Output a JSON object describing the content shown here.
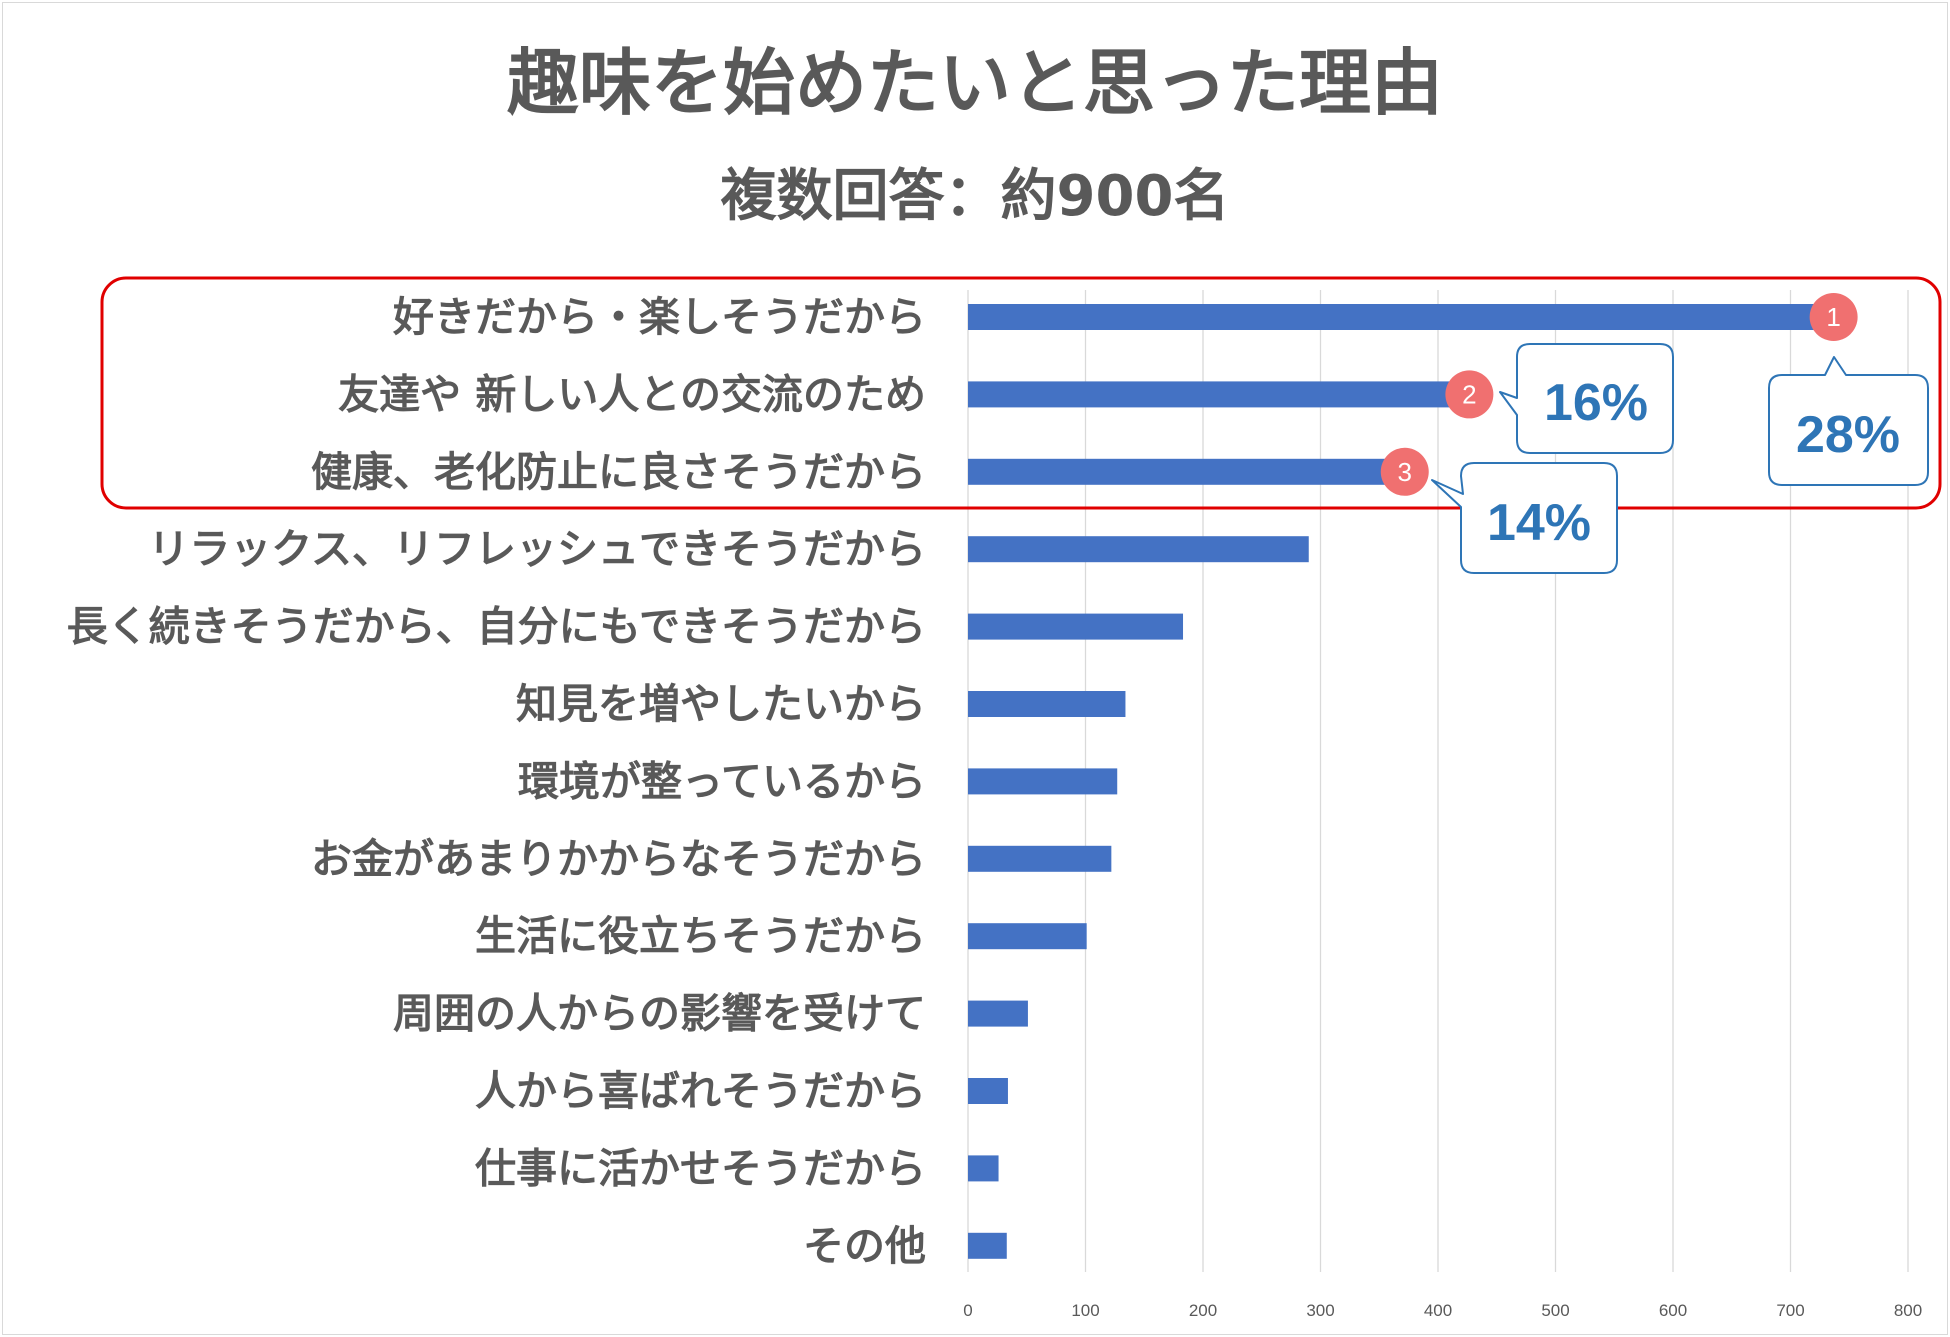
{
  "chart_data": {
    "type": "bar",
    "orientation": "horizontal",
    "title": "趣味を始めたいと思った理由",
    "subtitle": "複数回答：約900名",
    "categories": [
      "好きだから・楽しそうだから",
      "友達や 新しい人との交流のため",
      "健康、老化防止に良さそうだから",
      "リラックス、リフレッシュできそうだから",
      "長く続きそうだから、自分にもできそうだから",
      "知見を増やしたいから",
      "環境が整っているから",
      "お金があまりかからなそうだから",
      "生活に役立ちそうだから",
      "周囲の人からの影響を受けて",
      "人から喜ばれそうだから",
      "仕事に活かせそうだから",
      "その他"
    ],
    "values": [
      735,
      425,
      370,
      290,
      183,
      134,
      127,
      122,
      101,
      51,
      34,
      26,
      33
    ],
    "xlim": [
      0,
      800
    ],
    "xticks": [
      "0",
      "100",
      "200",
      "300",
      "400",
      "500",
      "600",
      "700",
      "800"
    ],
    "grid": true,
    "bar_color": "#4472c4",
    "highlight": {
      "color": "#e00000",
      "ranks": [
        "1",
        "2",
        "3"
      ],
      "rank_color": "#f07070",
      "callouts": [
        "28%",
        "16%",
        "14%"
      ],
      "callout_color": "#2e75b6"
    }
  }
}
